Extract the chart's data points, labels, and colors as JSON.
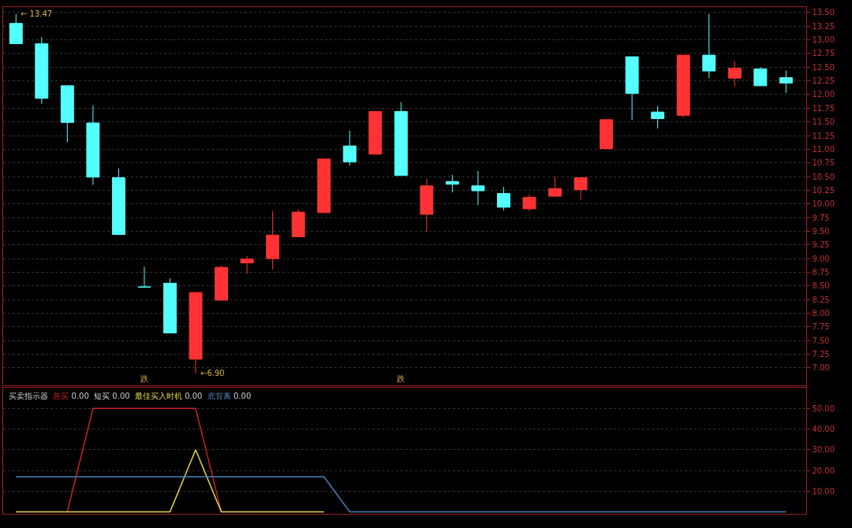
{
  "chart_data": [
    {
      "type": "candlestick",
      "categories": [
        null,
        null,
        null,
        null,
        null,
        null,
        null,
        null,
        null,
        null,
        null,
        null,
        null,
        null,
        null,
        null,
        null,
        null,
        null,
        null,
        null,
        null,
        null,
        null,
        null,
        null,
        null,
        null,
        null,
        null,
        null
      ],
      "ohlc": [
        [
          13.3,
          13.47,
          12.93,
          12.93
        ],
        [
          12.93,
          13.05,
          11.83,
          11.93
        ],
        [
          12.16,
          12.16,
          11.13,
          11.49
        ],
        [
          11.48,
          11.8,
          10.35,
          10.49
        ],
        [
          10.48,
          10.65,
          9.44,
          9.44
        ],
        [
          8.48,
          8.85,
          8.48,
          8.48
        ],
        [
          8.55,
          8.64,
          7.64,
          7.64
        ],
        [
          7.16,
          8.38,
          6.9,
          8.38
        ],
        [
          8.24,
          8.87,
          8.24,
          8.84
        ],
        [
          8.92,
          9.05,
          8.72,
          8.99
        ],
        [
          9.0,
          9.87,
          8.8,
          9.43
        ],
        [
          9.4,
          9.9,
          9.4,
          9.85
        ],
        [
          9.84,
          10.82,
          9.84,
          10.82
        ],
        [
          11.06,
          11.34,
          10.7,
          10.77
        ],
        [
          10.91,
          11.69,
          10.91,
          11.69
        ],
        [
          11.69,
          11.86,
          10.52,
          10.52
        ],
        [
          9.81,
          10.46,
          9.49,
          10.33
        ],
        [
          10.41,
          10.53,
          10.21,
          10.36
        ],
        [
          10.33,
          10.6,
          9.98,
          10.24
        ],
        [
          10.19,
          10.31,
          9.88,
          9.94
        ],
        [
          9.91,
          10.17,
          9.87,
          10.12
        ],
        [
          10.14,
          10.5,
          10.14,
          10.28
        ],
        [
          10.26,
          10.48,
          10.08,
          10.48
        ],
        [
          11.01,
          11.54,
          11.01,
          11.54
        ],
        [
          12.69,
          12.69,
          11.54,
          12.02
        ],
        [
          11.68,
          11.79,
          11.38,
          11.56
        ],
        [
          11.62,
          12.72,
          11.58,
          12.72
        ],
        [
          12.72,
          13.47,
          12.3,
          12.43
        ],
        [
          12.3,
          12.61,
          12.14,
          12.48
        ],
        [
          12.47,
          12.5,
          12.16,
          12.16
        ],
        [
          12.31,
          12.44,
          12.03,
          12.21
        ]
      ],
      "colors": [
        "#54ffff",
        "#54ffff",
        "#54ffff",
        "#54ffff",
        "#54ffff",
        "#54ffff",
        "#54ffff",
        "#ff3333",
        "#ff3333",
        "#ff3333",
        "#ff3333",
        "#ff3333",
        "#ff3333",
        "#54ffff",
        "#ff3333",
        "#54ffff",
        "#ff3333",
        "#54ffff",
        "#54ffff",
        "#54ffff",
        "#ff3333",
        "#ff3333",
        "#ff3333",
        "#ff3333",
        "#54ffff",
        "#54ffff",
        "#ff3333",
        "#54ffff",
        "#ff3333",
        "#54ffff",
        "#54ffff"
      ],
      "ylim": [
        6.68,
        13.6
      ],
      "yticks": [
        {
          "value": 7,
          "label": "7.00"
        },
        {
          "value": 7.25,
          "label": "7.25"
        },
        {
          "value": 7.5,
          "label": "7.50"
        },
        {
          "value": 7.75,
          "label": "7.75"
        },
        {
          "value": 8,
          "label": "8.00"
        },
        {
          "value": 8.25,
          "label": "8.25"
        },
        {
          "value": 8.5,
          "label": "8.50"
        },
        {
          "value": 8.75,
          "label": "8.75"
        },
        {
          "value": 9,
          "label": "9.00"
        },
        {
          "value": 9.25,
          "label": "9.25"
        },
        {
          "value": 9.5,
          "label": "9.50"
        },
        {
          "value": 9.75,
          "label": "9.75"
        },
        {
          "value": 10,
          "label": "10.00"
        },
        {
          "value": 10.25,
          "label": "10.25"
        },
        {
          "value": 10.5,
          "label": "10.50"
        },
        {
          "value": 10.75,
          "label": "10.75"
        },
        {
          "value": 11,
          "label": "11.00"
        },
        {
          "value": 11.25,
          "label": "11.25"
        },
        {
          "value": 11.5,
          "label": "11.50"
        },
        {
          "value": 11.75,
          "label": "11.75"
        },
        {
          "value": 12,
          "label": "12.00"
        },
        {
          "value": 12.25,
          "label": "12.25"
        },
        {
          "value": 12.5,
          "label": "12.50"
        },
        {
          "value": 12.75,
          "label": "12.75"
        },
        {
          "value": 13,
          "label": "13.00"
        },
        {
          "value": 13.25,
          "label": "13.25"
        },
        {
          "value": 13.5,
          "label": "13.50"
        }
      ],
      "tick_labels": "y",
      "grid": "y",
      "value_labels": [
        "← 13.47",
        null,
        null,
        null,
        null,
        "跌",
        null,
        "←6.90",
        null,
        null,
        null,
        null,
        null,
        null,
        null,
        "跌",
        null,
        null,
        null,
        null,
        null,
        null,
        null,
        null,
        null,
        null,
        null,
        null,
        null,
        null,
        null
      ]
    },
    {
      "type": "line",
      "title": "买卖指示器",
      "categories": [
        null,
        null,
        null,
        null,
        null,
        null,
        null,
        null,
        null,
        null,
        null,
        null,
        null,
        null,
        null,
        null,
        null,
        null,
        null,
        null,
        null,
        null,
        null,
        null,
        null,
        null,
        null,
        null,
        null,
        null,
        null
      ],
      "series": [
        {
          "name": "急买",
          "color": "#cc2222",
          "values": [
            null,
            null,
            0,
            50,
            50,
            50,
            50,
            50,
            0,
            null,
            null,
            null,
            null,
            null,
            null,
            null,
            null,
            null,
            null,
            null,
            null,
            null,
            null,
            null,
            null,
            null,
            null,
            null,
            null,
            null,
            null
          ]
        },
        {
          "name": "短买",
          "color": "#dddddd",
          "values": [
            null,
            null,
            null,
            null,
            null,
            null,
            null,
            null,
            null,
            null,
            null,
            null,
            null,
            null,
            null,
            null,
            null,
            null,
            null,
            null,
            null,
            null,
            null,
            null,
            null,
            null,
            null,
            null,
            null,
            null,
            null
          ]
        },
        {
          "name": "最佳买入时机",
          "color": "#e6d84a",
          "values": [
            0,
            0,
            0,
            0,
            0,
            0,
            0,
            30,
            0,
            0,
            0,
            0,
            0,
            null,
            null,
            null,
            null,
            null,
            null,
            null,
            null,
            null,
            null,
            null,
            null,
            null,
            null,
            null,
            null,
            null,
            null
          ]
        },
        {
          "name": "底背离",
          "color": "#4a7fb5",
          "values": [
            17,
            17,
            17,
            17,
            17,
            17,
            17,
            17,
            17,
            17,
            17,
            17,
            17,
            0,
            0,
            0,
            0,
            0,
            0,
            0,
            0,
            0,
            0,
            0,
            0,
            0,
            0,
            0,
            0,
            0,
            0
          ]
        }
      ],
      "annotations": [
        "0.00",
        "0.00",
        "0.00",
        "0.00"
      ],
      "ylim": [
        -1,
        60
      ],
      "yticks": [
        {
          "value": 10,
          "label": "10.00"
        },
        {
          "value": 20,
          "label": "20.00"
        },
        {
          "value": 30,
          "label": "30.00"
        },
        {
          "value": 40,
          "label": "40.00"
        },
        {
          "value": 50,
          "label": "50.00"
        }
      ],
      "tick_labels": "y",
      "grid": "y"
    }
  ]
}
